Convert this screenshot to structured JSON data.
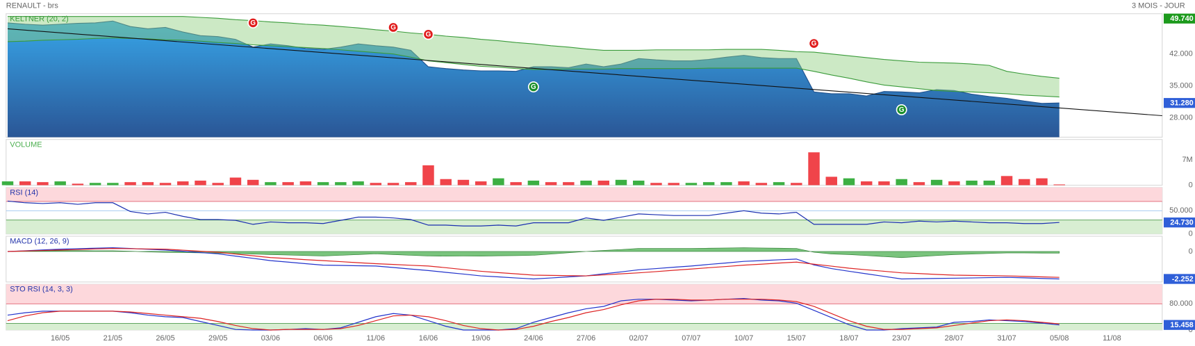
{
  "header": {
    "title": "RENAULT - brs",
    "period": "3 MOIS - JOUR"
  },
  "chart_data": [
    {
      "type": "area",
      "title": "KELTNER (20, 2)",
      "title_color": "#3a9b3a",
      "color": "#2b86cf",
      "values": [
        48.8,
        48.5,
        48.3,
        48.5,
        48.7,
        48.8,
        49.2,
        48.0,
        47.5,
        47.8,
        46.8,
        46.0,
        45.8,
        45.2,
        43.5,
        44.2,
        43.8,
        43.2,
        43.0,
        43.5,
        44.2,
        43.8,
        43.5,
        42.8,
        39.2,
        38.8,
        38.5,
        38.3,
        38.3,
        38.2,
        39.2,
        39.2,
        39.0,
        39.8,
        39.2,
        39.8,
        41.0,
        40.7,
        40.5,
        40.5,
        40.8,
        41.3,
        41.7,
        41.2,
        41.0,
        41.0,
        33.7,
        33.3,
        33.3,
        32.8,
        33.8,
        33.7,
        33.5,
        34.2,
        34.0,
        33.2,
        32.7,
        32.3,
        31.7,
        31.2,
        31.28,
        null,
        null,
        null
      ],
      "keltner_upper": [
        50.2,
        50.2,
        50.2,
        50.2,
        50.2,
        50.2,
        50.2,
        50.2,
        50.2,
        50.2,
        50.2,
        50.0,
        49.8,
        49.5,
        49.3,
        49.0,
        48.8,
        48.5,
        48.3,
        48.0,
        47.7,
        47.3,
        47.0,
        46.6,
        46.3,
        45.9,
        45.6,
        45.2,
        44.9,
        44.5,
        44.2,
        43.8,
        43.5,
        43.1,
        42.8,
        42.8,
        42.8,
        42.9,
        42.9,
        42.9,
        42.9,
        43.0,
        43.0,
        43.0,
        42.8,
        42.5,
        42.4,
        42.0,
        41.6,
        41.2,
        40.8,
        40.5,
        40.2,
        40.1,
        40.0,
        39.8,
        39.5,
        38.2,
        37.6,
        37.1,
        36.7,
        null,
        null,
        null
      ],
      "keltner_lower": [
        44.7,
        44.8,
        45.0,
        45.1,
        45.2,
        45.4,
        45.5,
        45.4,
        45.3,
        45.1,
        45.0,
        44.8,
        44.5,
        44.3,
        44.0,
        43.8,
        43.6,
        43.4,
        43.2,
        42.9,
        42.6,
        42.3,
        42.0,
        41.3,
        40.5,
        40.1,
        39.7,
        39.3,
        39.1,
        38.8,
        38.6,
        38.6,
        38.7,
        38.7,
        38.7,
        38.8,
        38.8,
        38.8,
        38.8,
        38.8,
        38.9,
        38.9,
        38.9,
        38.9,
        38.9,
        38.9,
        38.2,
        37.4,
        36.7,
        35.9,
        35.2,
        34.8,
        34.4,
        34.0,
        33.8,
        33.7,
        33.5,
        33.3,
        33.0,
        32.8,
        32.6,
        null,
        null,
        null
      ],
      "band_color": "#8fcf7f",
      "band_line_color": "#3a9b3a",
      "trendline": {
        "values": [
          47.5,
          28.5
        ],
        "color": "#111111"
      },
      "signals": [
        {
          "label": "G",
          "x": 14,
          "value": 48.8,
          "color": "#e01b1b"
        },
        {
          "label": "G",
          "x": 22,
          "value": 47.8,
          "color": "#e01b1b"
        },
        {
          "label": "G",
          "x": 24,
          "value": 46.3,
          "color": "#e01b1b"
        },
        {
          "label": "G",
          "x": 46,
          "value": 44.3,
          "color": "#e01b1b"
        },
        {
          "label": "G",
          "x": 30,
          "value": 34.8,
          "color": "#1a8f2a"
        },
        {
          "label": "G",
          "x": 51,
          "value": 29.8,
          "color": "#1a8f2a"
        }
      ],
      "ylim": [
        23.8,
        50.8
      ],
      "yticks": [
        {
          "value": 42,
          "label": "42.000"
        },
        {
          "value": 35,
          "label": "35.000"
        },
        {
          "value": 28,
          "label": "28.000"
        }
      ],
      "high_label": {
        "value": 49.74,
        "label": "49.740",
        "color": "#1c9a1c"
      },
      "last_label": {
        "value": 31.28,
        "label": "31.280",
        "color": "#2f5fd8"
      }
    },
    {
      "type": "bar",
      "title": "VOLUME",
      "title_color": "#4caf50",
      "values": [
        1060000,
        1060000,
        850000,
        1060000,
        420000,
        640000,
        640000,
        850000,
        850000,
        640000,
        1060000,
        1270000,
        640000,
        2120000,
        1490000,
        850000,
        850000,
        1060000,
        850000,
        850000,
        1060000,
        640000,
        640000,
        850000,
        5520000,
        1700000,
        1490000,
        1060000,
        1910000,
        850000,
        1270000,
        850000,
        850000,
        1270000,
        1270000,
        1490000,
        1270000,
        640000,
        640000,
        640000,
        850000,
        850000,
        1060000,
        640000,
        850000,
        640000,
        9130000,
        2340000,
        1910000,
        1060000,
        1060000,
        1700000,
        850000,
        1490000,
        1060000,
        1270000,
        1270000,
        2550000,
        1700000,
        1910000,
        210000,
        null,
        null,
        null
      ],
      "colors": [
        "#3cb043",
        "#f0444a",
        "#f0444a",
        "#3cb043",
        "#f0444a",
        "#3cb043",
        "#3cb043",
        "#f0444a",
        "#f0444a",
        "#f0444a",
        "#f0444a",
        "#f0444a",
        "#f0444a",
        "#f0444a",
        "#f0444a",
        "#3cb043",
        "#f0444a",
        "#f0444a",
        "#3cb043",
        "#3cb043",
        "#3cb043",
        "#f0444a",
        "#f0444a",
        "#f0444a",
        "#f0444a",
        "#f0444a",
        "#f0444a",
        "#f0444a",
        "#3cb043",
        "#f0444a",
        "#3cb043",
        "#f0444a",
        "#f0444a",
        "#3cb043",
        "#f0444a",
        "#3cb043",
        "#3cb043",
        "#f0444a",
        "#f0444a",
        "#3cb043",
        "#3cb043",
        "#3cb043",
        "#f0444a",
        "#f0444a",
        "#3cb043",
        "#f0444a",
        "#f0444a",
        "#f0444a",
        "#3cb043",
        "#f0444a",
        "#f0444a",
        "#3cb043",
        "#f0444a",
        "#3cb043",
        "#f0444a",
        "#3cb043",
        "#3cb043",
        "#f0444a",
        "#f0444a",
        "#f0444a",
        "#f0444a",
        null,
        null,
        null
      ],
      "ylim": [
        0,
        12700000
      ],
      "yticks": [
        0,
        {
          "value": 7000000,
          "label": "7M"
        }
      ]
    },
    {
      "type": "line",
      "title": "RSI (14)",
      "title_color": "#2233aa",
      "series": [
        {
          "color": "#1a2fb0",
          "values": [
            70.7,
            67.2,
            65.5,
            67.2,
            63.8,
            67.2,
            67.2,
            48.3,
            43.1,
            46.6,
            37.9,
            31.0,
            31.0,
            29.3,
            20.7,
            25.9,
            24.1,
            24.1,
            22.4,
            29.3,
            36.2,
            36.2,
            34.5,
            31.0,
            19.0,
            19.0,
            17.2,
            17.2,
            19.0,
            17.2,
            24.1,
            24.1,
            24.1,
            34.5,
            29.3,
            36.2,
            43.1,
            41.4,
            39.7,
            39.7,
            39.7,
            44.8,
            50.0,
            44.8,
            43.1,
            46.6,
            20.7,
            20.7,
            20.7,
            20.7,
            25.9,
            24.1,
            27.6,
            25.9,
            27.6,
            25.9,
            24.1,
            24.1,
            22.4,
            22.4,
            24.73,
            null,
            null,
            null
          ]
        }
      ],
      "zones": [
        {
          "from": 70,
          "to": 100,
          "color": "#fdd8dc",
          "edge": "#e06070"
        },
        {
          "from": 0,
          "to": 30,
          "color": "#d8eed2",
          "edge": "#4a9a4a"
        }
      ],
      "grid": true,
      "grid_color": "#9cc4f0",
      "ylim": [
        0,
        100
      ],
      "yticks": [
        0,
        {
          "value": 50,
          "label": "50.000"
        }
      ],
      "last_label": {
        "value": 24.73,
        "label": "24.730",
        "color": "#2f5fd8"
      }
    },
    {
      "type": "line",
      "title": "MACD (12, 26, 9)",
      "title_color": "#2233aa",
      "series": [
        {
          "color": "#2233cc",
          "values": [
            0.0,
            0.06,
            0.13,
            0.19,
            0.23,
            0.27,
            0.31,
            0.25,
            0.18,
            0.12,
            0.02,
            -0.09,
            -0.19,
            -0.38,
            -0.56,
            -0.75,
            -0.87,
            -1.0,
            -1.12,
            -1.14,
            -1.17,
            -1.19,
            -1.31,
            -1.44,
            -1.56,
            -1.71,
            -1.85,
            -2.0,
            -2.08,
            -2.17,
            -2.25,
            -2.17,
            -2.08,
            -2.0,
            -1.83,
            -1.67,
            -1.5,
            -1.4,
            -1.29,
            -1.19,
            -1.06,
            -0.94,
            -0.81,
            -0.75,
            -0.68,
            -0.62,
            -1.1,
            -1.4,
            -1.62,
            -1.83,
            -2.04,
            -2.25,
            -2.23,
            -2.21,
            -2.19,
            -2.17,
            -2.14,
            -2.12,
            -2.16,
            -2.21,
            -2.252,
            null,
            null,
            null
          ]
        },
        {
          "color": "#dd2222",
          "values": [
            0.0,
            0.04,
            0.08,
            0.12,
            0.16,
            0.21,
            0.25,
            0.23,
            0.21,
            0.19,
            0.11,
            0.02,
            -0.06,
            -0.21,
            -0.35,
            -0.5,
            -0.58,
            -0.67,
            -0.75,
            -0.83,
            -0.92,
            -1.0,
            -1.06,
            -1.13,
            -1.19,
            -1.33,
            -1.48,
            -1.62,
            -1.73,
            -1.83,
            -1.94,
            -1.96,
            -1.98,
            -2.0,
            -1.92,
            -1.83,
            -1.75,
            -1.65,
            -1.54,
            -1.44,
            -1.33,
            -1.23,
            -1.12,
            -1.04,
            -0.95,
            -0.87,
            -1.04,
            -1.2,
            -1.37,
            -1.5,
            -1.62,
            -1.75,
            -1.81,
            -1.88,
            -1.94,
            -1.96,
            -1.98,
            -2.0,
            -2.04,
            -2.08,
            -2.12,
            null,
            null,
            null
          ]
        }
      ],
      "histogram_color": "#4caf50",
      "ylim": [
        -2.5,
        1.25
      ],
      "yticks": [
        0
      ],
      "last_label": {
        "value": -2.252,
        "label": "-2.252",
        "color": "#2f5fd8"
      }
    },
    {
      "type": "line",
      "title": "STO RSI (14, 3, 3)",
      "title_color": "#2233aa",
      "categories": [
        null,
        null,
        null,
        "16/05",
        null,
        null,
        "21/05",
        null,
        null,
        "26/05",
        null,
        null,
        "29/05",
        null,
        null,
        "03/06",
        null,
        null,
        "06/06",
        null,
        null,
        "11/06",
        null,
        null,
        "16/06",
        null,
        null,
        "19/06",
        null,
        null,
        "24/06",
        null,
        null,
        "27/06",
        null,
        null,
        "02/07",
        null,
        null,
        "07/07",
        null,
        null,
        "10/07",
        null,
        null,
        "15/07",
        null,
        null,
        "18/07",
        null,
        null,
        "23/07",
        null,
        null,
        "28/07",
        null,
        null,
        "31/07",
        null,
        null,
        "05/08",
        null,
        null,
        "11/08"
      ],
      "series": [
        {
          "color": "#2233cc",
          "values": [
            45.5,
            52.8,
            57.7,
            57.7,
            57.7,
            57.7,
            57.7,
            52.8,
            45.5,
            40.6,
            38.2,
            26.0,
            13.9,
            1.7,
            0,
            0,
            1.7,
            4.1,
            1.7,
            6.6,
            23.6,
            40.6,
            50.4,
            45.5,
            28.5,
            11.4,
            0,
            0,
            0,
            4.1,
            23.6,
            38.2,
            52.8,
            65.0,
            72.3,
            89.3,
            94.2,
            94.2,
            91.7,
            89.3,
            91.7,
            94.2,
            96.6,
            91.7,
            89.3,
            82.0,
            60.1,
            38.2,
            16.3,
            0,
            0,
            4.1,
            6.6,
            9.0,
            23.6,
            26.0,
            30.9,
            28.5,
            26.0,
            21.2,
            15.458,
            null,
            null,
            null
          ]
        },
        {
          "color": "#dd2222",
          "values": [
            28.5,
            43.1,
            52.8,
            57.7,
            57.7,
            57.7,
            57.7,
            55.2,
            50.4,
            45.5,
            40.6,
            35.8,
            26.0,
            13.9,
            4.1,
            0,
            1.7,
            1.7,
            1.7,
            4.1,
            13.9,
            28.5,
            43.1,
            45.5,
            40.6,
            28.5,
            13.9,
            4.1,
            0,
            1.7,
            11.4,
            26.0,
            38.2,
            52.8,
            62.5,
            77.1,
            89.3,
            94.2,
            94.2,
            91.7,
            91.7,
            94.2,
            94.2,
            94.2,
            91.7,
            86.9,
            72.3,
            50.4,
            28.5,
            11.4,
            1.7,
            1.7,
            4.1,
            6.6,
            13.9,
            21.2,
            28.5,
            30.9,
            28.5,
            23.6,
            18.7,
            null,
            null,
            null
          ]
        }
      ],
      "zones": [
        {
          "from": 80,
          "to": 140,
          "color": "#fdd8dc",
          "edge": "#e06070"
        },
        {
          "from": 0,
          "to": 20,
          "color": "#d8eed2",
          "edge": "#4a9a4a"
        }
      ],
      "ylim": [
        0,
        140
      ],
      "yticks": [
        0,
        {
          "value": 80,
          "label": "80.000"
        }
      ],
      "last_label": {
        "value": 15.458,
        "label": "15.458",
        "color": "#2f5fd8"
      }
    }
  ]
}
